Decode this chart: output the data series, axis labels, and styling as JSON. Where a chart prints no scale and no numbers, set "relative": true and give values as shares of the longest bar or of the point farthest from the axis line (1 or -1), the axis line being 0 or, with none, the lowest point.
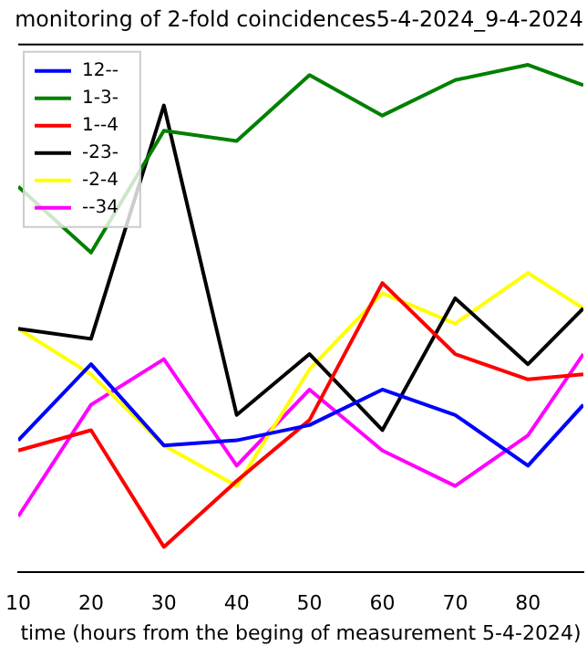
{
  "chart_data": {
    "type": "line",
    "title": "monitoring of 2-fold coincidences5-4-2024_9-4-2024",
    "xlabel": "time (hours from the beging of measurement 5-4-2024)",
    "x": [
      10,
      20,
      30,
      40,
      50,
      60,
      70,
      80,
      87.6
    ],
    "xlim": [
      10,
      87.6
    ],
    "xticks": [
      10,
      20,
      30,
      40,
      50,
      60,
      70,
      80
    ],
    "relative": true,
    "legend": "top left",
    "marker": "none",
    "line_style": "solid",
    "series": [
      {
        "name": "12--",
        "color": "#0000ff",
        "values": [
          0.26,
          0.41,
          0.25,
          0.26,
          0.29,
          0.36,
          0.31,
          0.21,
          0.33
        ]
      },
      {
        "name": "1-3-",
        "color": "#008000",
        "values": [
          0.76,
          0.63,
          0.87,
          0.85,
          0.98,
          0.9,
          0.97,
          1.0,
          0.96
        ]
      },
      {
        "name": "1--4",
        "color": "#ff0000",
        "values": [
          0.24,
          0.28,
          0.05,
          0.18,
          0.3,
          0.57,
          0.43,
          0.38,
          0.39
        ]
      },
      {
        "name": "-23-",
        "color": "#000000",
        "values": [
          0.48,
          0.46,
          0.92,
          0.31,
          0.43,
          0.28,
          0.54,
          0.41,
          0.52
        ]
      },
      {
        "name": "-2-4",
        "color": "#ffff00",
        "values": [
          0.48,
          0.39,
          0.25,
          0.17,
          0.4,
          0.55,
          0.49,
          0.59,
          0.52
        ]
      },
      {
        "name": "--34",
        "color": "#ff00ff",
        "values": [
          0.11,
          0.33,
          0.42,
          0.21,
          0.36,
          0.24,
          0.17,
          0.27,
          0.43
        ]
      }
    ]
  }
}
